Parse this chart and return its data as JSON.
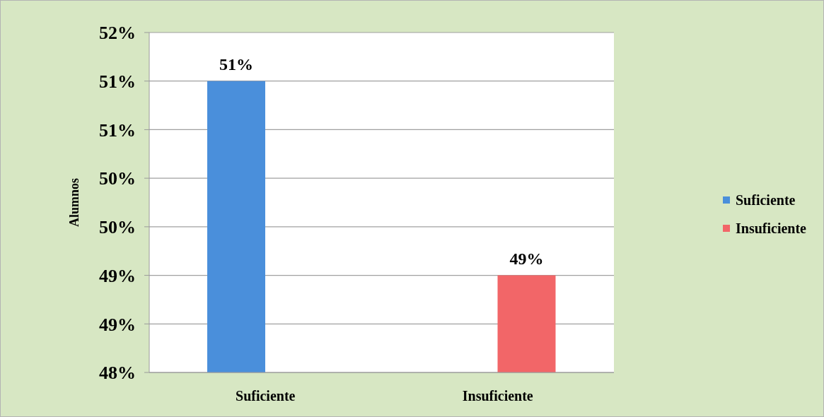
{
  "chart_data": {
    "type": "bar",
    "ylabel": "Alumnos",
    "categories": [
      "Suficiente",
      "Insuficiente"
    ],
    "series": [
      {
        "name": "Suficiente",
        "color": "#4a8fdb",
        "values": [
          51,
          null
        ],
        "value_labels": [
          "51%",
          null
        ]
      },
      {
        "name": "Insuficiente",
        "color": "#f26668",
        "values": [
          null,
          49
        ],
        "value_labels": [
          null,
          "49%"
        ]
      }
    ],
    "ylim": [
      48,
      51.5
    ],
    "yticks": [
      {
        "value": 48,
        "label": "48%"
      },
      {
        "value": 48.5,
        "label": "49%"
      },
      {
        "value": 49,
        "label": "49%"
      },
      {
        "value": 49.5,
        "label": "50%"
      },
      {
        "value": 50,
        "label": "50%"
      },
      {
        "value": 50.5,
        "label": "51%"
      },
      {
        "value": 51,
        "label": "51%"
      },
      {
        "value": 51.5,
        "label": "52%"
      }
    ],
    "grid": "y",
    "legend": "right"
  }
}
